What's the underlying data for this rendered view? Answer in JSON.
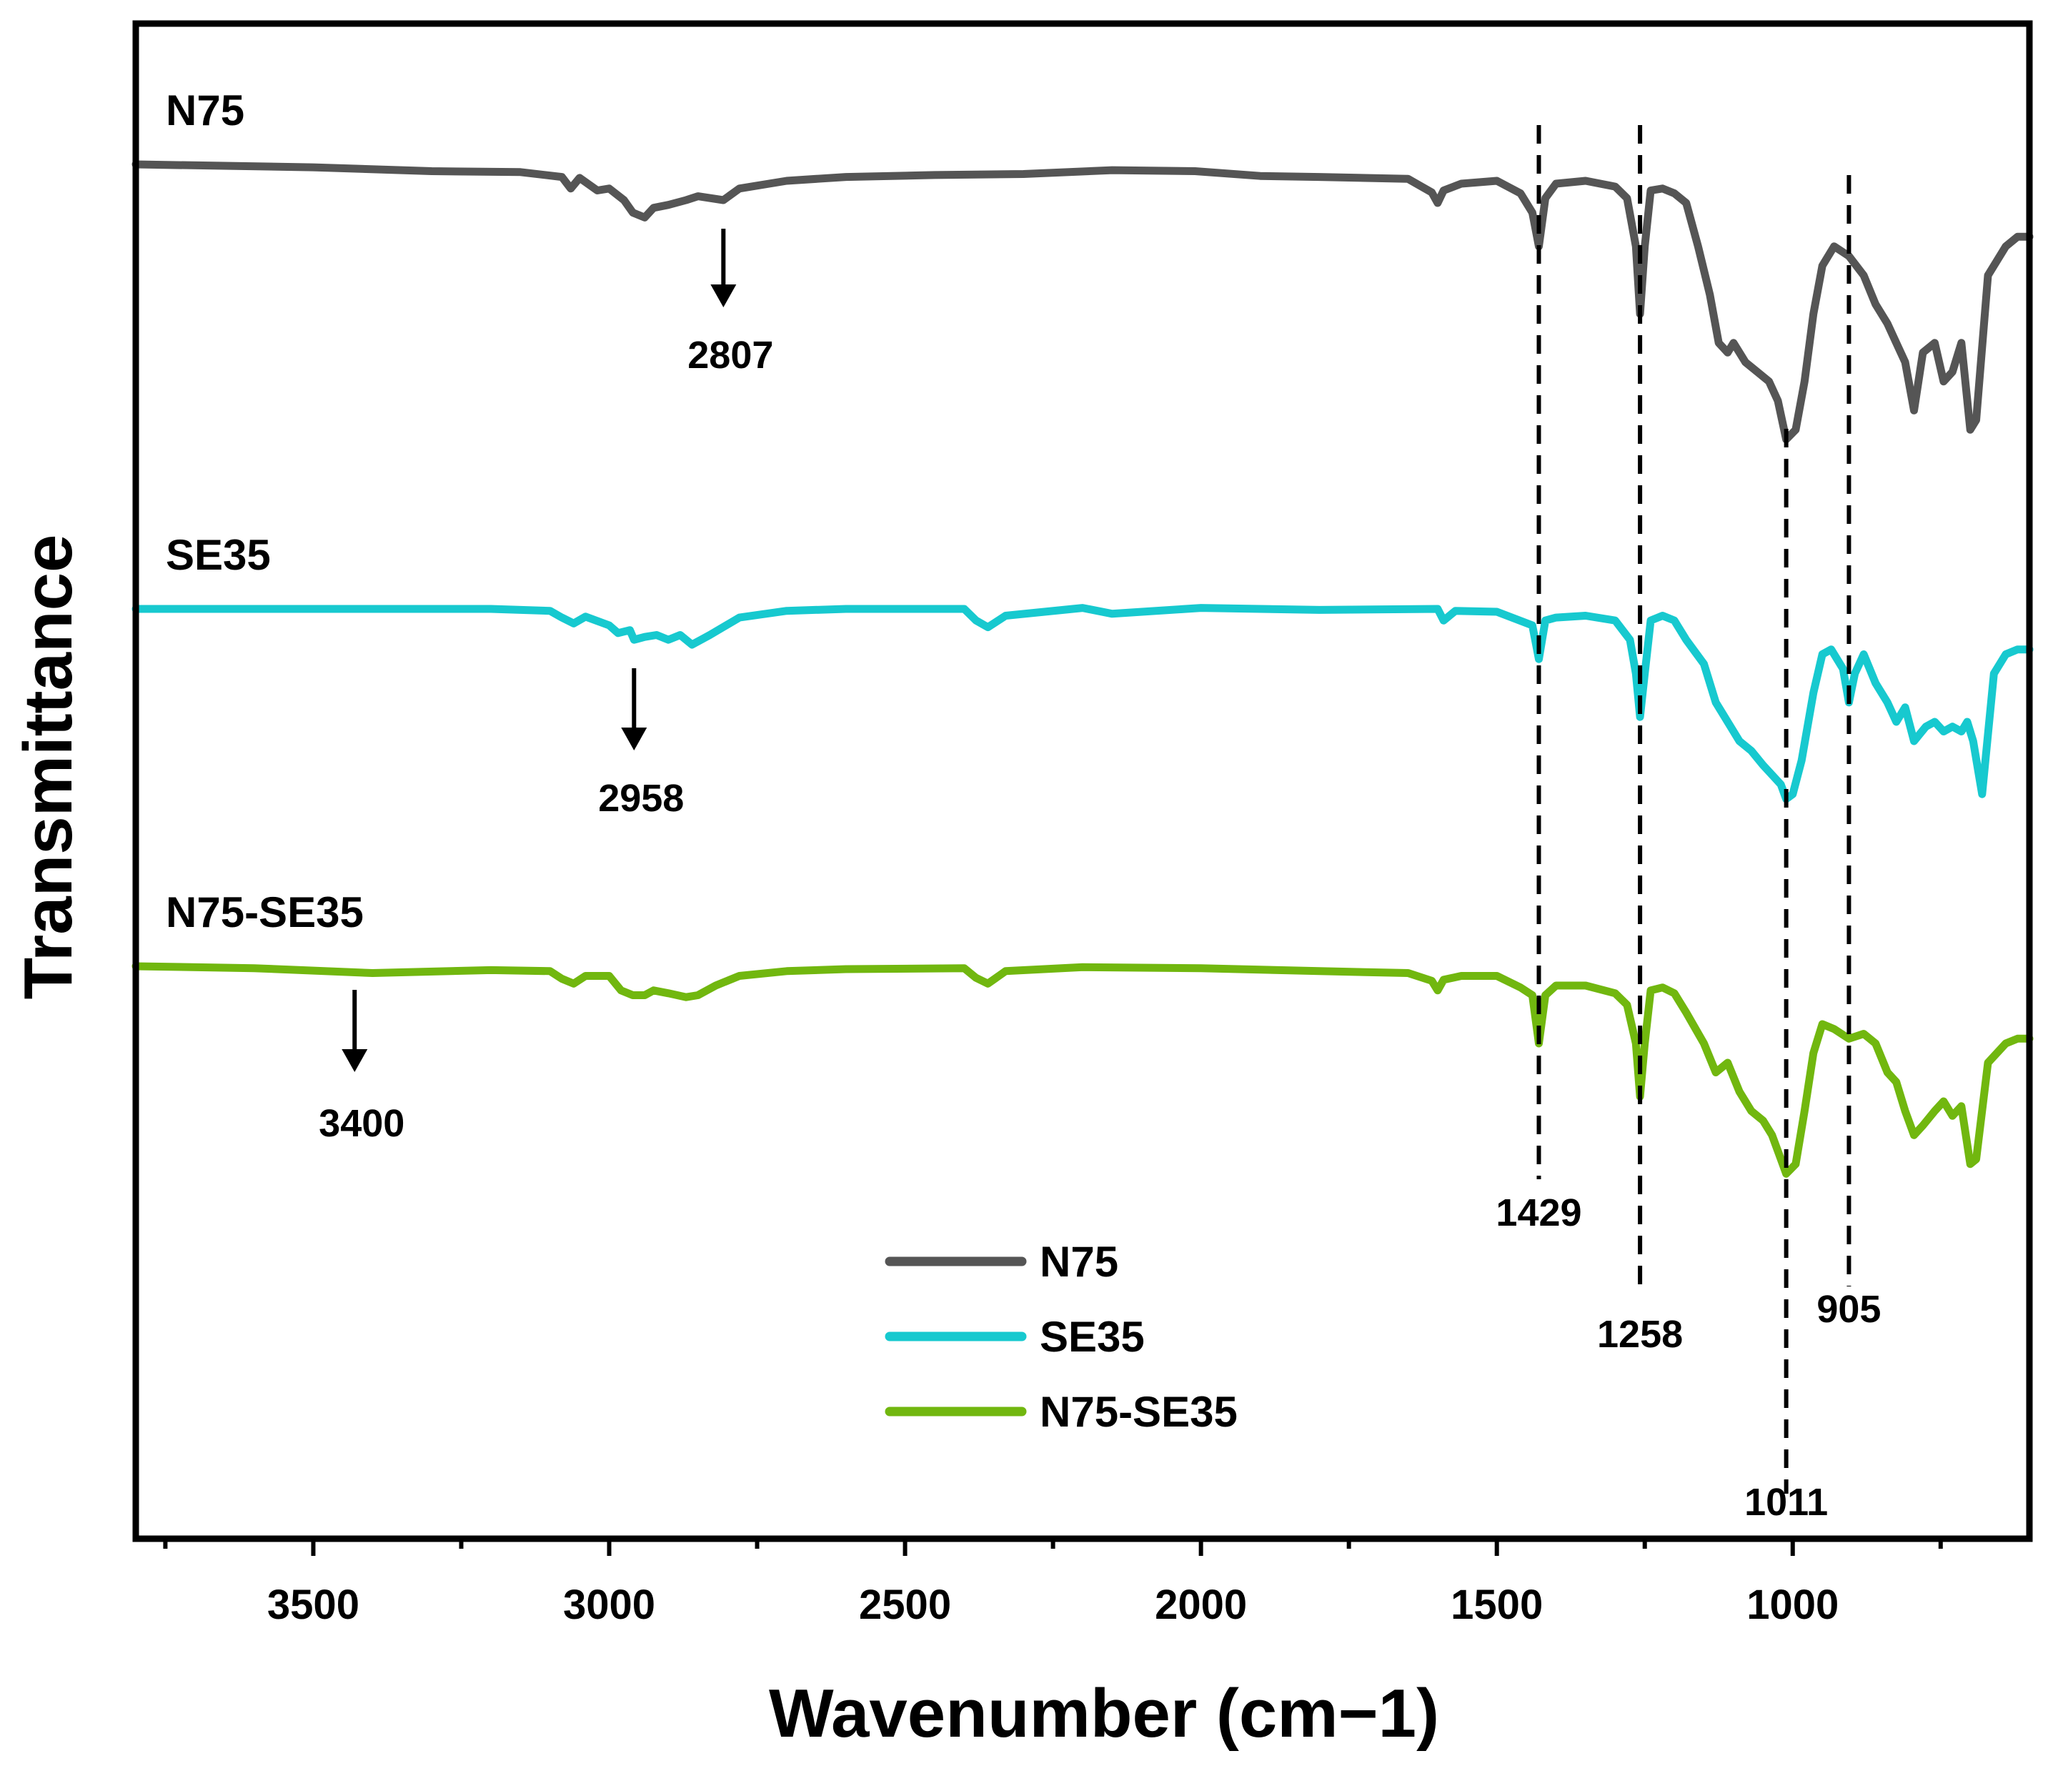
{
  "chart_data": {
    "type": "line",
    "title": "",
    "xlabel": "Wavenumber (cm−1)",
    "ylabel": "Transmittance",
    "xlim": [
      3800,
      600
    ],
    "ylim": [
      0,
      1
    ],
    "x_reversed": true,
    "grid": false,
    "x_ticks": [
      3500,
      3000,
      2500,
      2000,
      1500,
      1000
    ],
    "x_tick_labels": [
      "3500",
      "3000",
      "2500",
      "2000",
      "1500",
      "1000"
    ],
    "legend": {
      "position": "bottom-center",
      "entries": [
        "N75",
        "SE35",
        "N75-SE35"
      ]
    },
    "series": [
      {
        "name": "N75",
        "label": "N75",
        "color": "#555555",
        "x": [
          3800,
          3500,
          3300,
          3150,
          3080,
          3065,
          3050,
          3020,
          3000,
          2975,
          2960,
          2940,
          2925,
          2900,
          2870,
          2850,
          2807,
          2780,
          2700,
          2600,
          2450,
          2300,
          2150,
          2010,
          1900,
          1800,
          1650,
          1610,
          1600,
          1590,
          1560,
          1500,
          1460,
          1440,
          1429,
          1418,
          1400,
          1350,
          1300,
          1280,
          1265,
          1258,
          1250,
          1240,
          1220,
          1200,
          1180,
          1160,
          1140,
          1125,
          1110,
          1100,
          1080,
          1060,
          1040,
          1025,
          1011,
          995,
          980,
          965,
          950,
          930,
          905,
          880,
          860,
          840,
          825,
          810,
          795,
          780,
          760,
          745,
          730,
          715,
          700,
          690,
          670,
          640,
          620,
          600
        ],
        "values": [
          0.885,
          0.882,
          0.878,
          0.877,
          0.872,
          0.86,
          0.871,
          0.858,
          0.86,
          0.848,
          0.835,
          0.83,
          0.84,
          0.843,
          0.848,
          0.852,
          0.848,
          0.86,
          0.868,
          0.872,
          0.874,
          0.875,
          0.879,
          0.878,
          0.873,
          0.872,
          0.87,
          0.856,
          0.845,
          0.858,
          0.865,
          0.868,
          0.855,
          0.835,
          0.8,
          0.85,
          0.865,
          0.868,
          0.862,
          0.85,
          0.8,
          0.73,
          0.8,
          0.858,
          0.86,
          0.855,
          0.845,
          0.8,
          0.75,
          0.7,
          0.69,
          0.7,
          0.68,
          0.67,
          0.66,
          0.64,
          0.6,
          0.61,
          0.66,
          0.73,
          0.78,
          0.8,
          0.79,
          0.77,
          0.74,
          0.72,
          0.7,
          0.68,
          0.63,
          0.69,
          0.7,
          0.66,
          0.67,
          0.7,
          0.61,
          0.62,
          0.77,
          0.8,
          0.81,
          0.81
        ]
      },
      {
        "name": "SE35",
        "label": "SE35",
        "color": "#17c9cf",
        "x": [
          3800,
          3500,
          3200,
          3100,
          3080,
          3060,
          3040,
          3000,
          2985,
          2965,
          2958,
          2940,
          2920,
          2900,
          2880,
          2860,
          2830,
          2780,
          2700,
          2600,
          2400,
          2380,
          2360,
          2330,
          2200,
          2150,
          2000,
          1800,
          1600,
          1590,
          1570,
          1500,
          1440,
          1429,
          1418,
          1400,
          1350,
          1300,
          1275,
          1265,
          1258,
          1250,
          1240,
          1220,
          1200,
          1180,
          1150,
          1130,
          1110,
          1090,
          1070,
          1050,
          1035,
          1020,
          1011,
          1000,
          985,
          965,
          950,
          935,
          915,
          905,
          895,
          880,
          860,
          840,
          825,
          810,
          795,
          775,
          760,
          745,
          730,
          715,
          705,
          695,
          680,
          660,
          640,
          620,
          600
        ],
        "values": [
          0.887,
          0.887,
          0.887,
          0.885,
          0.878,
          0.872,
          0.879,
          0.87,
          0.862,
          0.865,
          0.855,
          0.858,
          0.86,
          0.855,
          0.86,
          0.85,
          0.86,
          0.878,
          0.885,
          0.887,
          0.887,
          0.875,
          0.868,
          0.88,
          0.888,
          0.882,
          0.888,
          0.886,
          0.887,
          0.875,
          0.885,
          0.884,
          0.87,
          0.835,
          0.875,
          0.878,
          0.88,
          0.875,
          0.855,
          0.82,
          0.775,
          0.82,
          0.875,
          0.88,
          0.875,
          0.855,
          0.83,
          0.79,
          0.77,
          0.75,
          0.74,
          0.725,
          0.715,
          0.705,
          0.69,
          0.695,
          0.73,
          0.8,
          0.84,
          0.845,
          0.825,
          0.79,
          0.82,
          0.84,
          0.81,
          0.79,
          0.77,
          0.785,
          0.75,
          0.765,
          0.77,
          0.76,
          0.765,
          0.76,
          0.77,
          0.75,
          0.695,
          0.82,
          0.84,
          0.845,
          0.845
        ]
      },
      {
        "name": "N75-SE35",
        "label": "N75-SE35",
        "color": "#71b70f",
        "x": [
          3800,
          3600,
          3400,
          3200,
          3100,
          3080,
          3060,
          3040,
          3000,
          2980,
          2960,
          2940,
          2925,
          2900,
          2870,
          2850,
          2820,
          2780,
          2700,
          2600,
          2400,
          2380,
          2360,
          2330,
          2200,
          2000,
          1800,
          1650,
          1610,
          1600,
          1590,
          1560,
          1500,
          1460,
          1440,
          1429,
          1418,
          1400,
          1350,
          1300,
          1280,
          1265,
          1258,
          1250,
          1240,
          1220,
          1200,
          1180,
          1150,
          1130,
          1110,
          1090,
          1070,
          1050,
          1035,
          1020,
          1011,
          995,
          980,
          965,
          950,
          930,
          905,
          880,
          860,
          840,
          825,
          810,
          795,
          780,
          760,
          745,
          730,
          715,
          700,
          690,
          670,
          640,
          620,
          600
        ],
        "values": [
          0.8,
          0.798,
          0.793,
          0.796,
          0.795,
          0.787,
          0.782,
          0.79,
          0.79,
          0.775,
          0.77,
          0.77,
          0.775,
          0.772,
          0.768,
          0.77,
          0.78,
          0.79,
          0.795,
          0.797,
          0.798,
          0.788,
          0.782,
          0.795,
          0.799,
          0.798,
          0.795,
          0.793,
          0.785,
          0.775,
          0.786,
          0.79,
          0.79,
          0.778,
          0.77,
          0.72,
          0.77,
          0.78,
          0.78,
          0.772,
          0.76,
          0.72,
          0.665,
          0.72,
          0.775,
          0.778,
          0.772,
          0.752,
          0.72,
          0.69,
          0.7,
          0.67,
          0.65,
          0.64,
          0.625,
          0.6,
          0.585,
          0.595,
          0.65,
          0.71,
          0.74,
          0.735,
          0.725,
          0.73,
          0.72,
          0.69,
          0.68,
          0.65,
          0.625,
          0.635,
          0.65,
          0.66,
          0.645,
          0.655,
          0.595,
          0.6,
          0.7,
          0.72,
          0.725,
          0.725
        ]
      }
    ],
    "vertical_markers": [
      {
        "x": 1429,
        "label": "1429"
      },
      {
        "x": 1258,
        "label": "1258"
      },
      {
        "x": 1011,
        "label": "1011"
      },
      {
        "x": 905,
        "label": "905"
      }
    ],
    "arrow_annotations": [
      {
        "series": "N75",
        "x": 2807,
        "label": "2807"
      },
      {
        "series": "SE35",
        "x": 2958,
        "label": "2958"
      },
      {
        "series": "N75-SE35",
        "x": 3400,
        "label": "3400"
      }
    ]
  }
}
